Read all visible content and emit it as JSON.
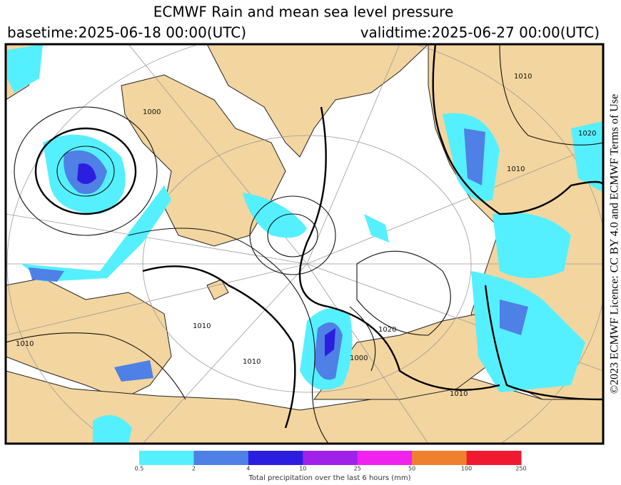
{
  "header": {
    "title": "ECMWF Rain and mean sea level pressure",
    "basetime": "basetime:2025-06-18 00:00(UTC)",
    "validtime": "validtime:2025-06-27 00:00(UTC)"
  },
  "map": {
    "isobar_labels": [
      "1000",
      "1010",
      "1020",
      "1010",
      "1000",
      "1010",
      "1020",
      "1010",
      "1010",
      "1010"
    ]
  },
  "licence": "©2023 ECMWF Licence: CC BY 4.0 and ECMWF Terms of Use",
  "colorbar": {
    "ticks": [
      0.5,
      2,
      4,
      10,
      25,
      50,
      100,
      250
    ],
    "colors": [
      "#55f0ff",
      "#4e80e6",
      "#2c1ee0",
      "#a022ea",
      "#f022f0",
      "#f0802e",
      "#f01a30"
    ],
    "caption": "Total precipitation over the last 6 hours (mm)"
  }
}
